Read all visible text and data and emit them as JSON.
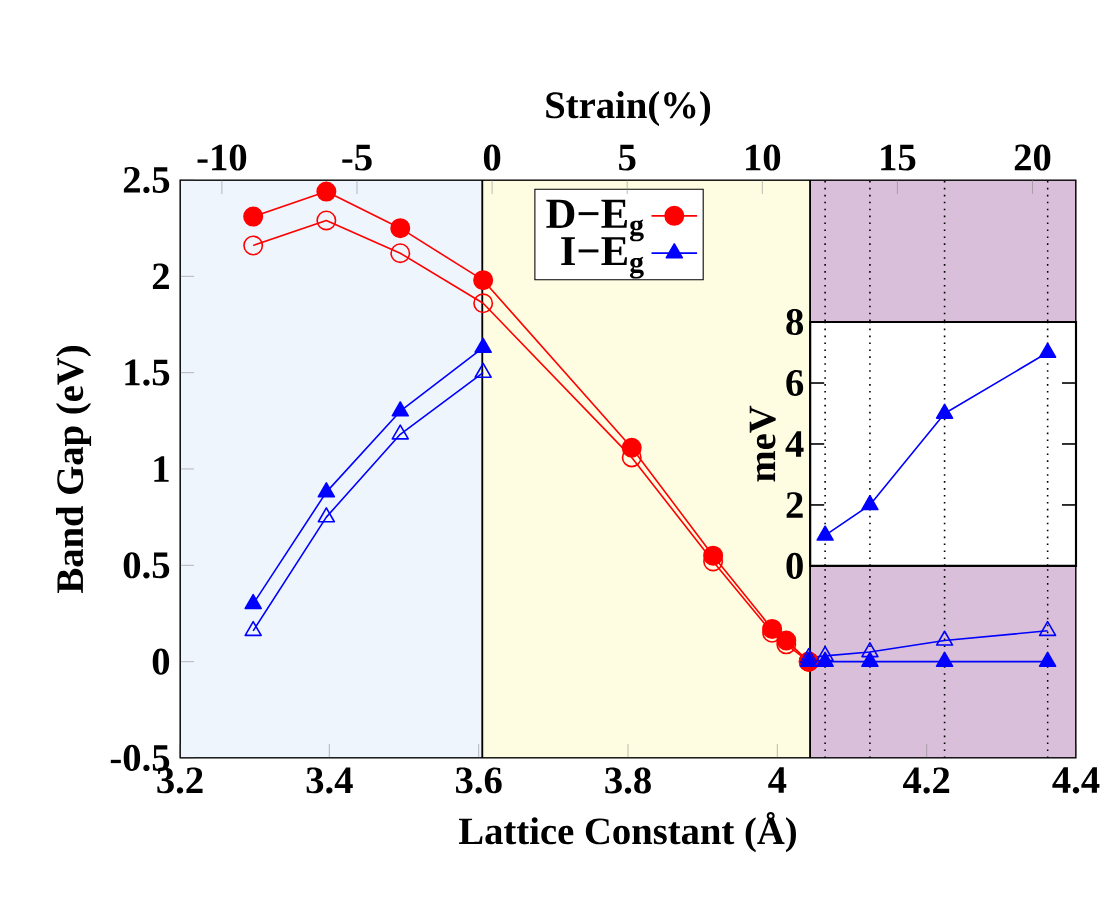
{
  "chart_data": [
    {
      "type": "line",
      "xlabel": "Lattice Constant (Å)",
      "ylabel": "Band Gap (eV)",
      "x2label": "Strain(%)",
      "xlim": [
        3.2,
        4.4
      ],
      "xticks": [
        3.2,
        3.4,
        3.6,
        3.8,
        4,
        4.2,
        4.4
      ],
      "ylim": [
        -0.5,
        2.5
      ],
      "yticks": [
        -0.5,
        0,
        0.5,
        1,
        1.5,
        2,
        2.5
      ],
      "x2lim": [
        -11.55,
        21.61
      ],
      "x2ticks": [
        -10,
        -5,
        0,
        5,
        10,
        15,
        20
      ],
      "legend": "top",
      "series": [
        {
          "name": "D−E$_{g}$",
          "color": "#ff0000",
          "marker": "circle",
          "x": [
            3.298,
            3.396,
            3.495,
            3.606,
            3.805,
            3.914,
            3.993,
            4.012,
            4.042
          ],
          "values": [
            2.31,
            2.44,
            2.25,
            1.98,
            1.11,
            0.55,
            0.17,
            0.11,
            0.0
          ]
        },
        {
          "color": "#ff0000",
          "marker": "circle",
          "x": [
            3.298,
            3.396,
            3.495,
            3.606,
            3.805,
            3.914,
            3.993,
            4.012,
            4.042
          ],
          "values": [
            2.16,
            2.29,
            2.12,
            1.86,
            1.06,
            0.52,
            0.15,
            0.09,
            0.0
          ]
        },
        {
          "name": "I−E$_{g}$",
          "color": "#0000ff",
          "marker": "triangle",
          "x": [
            3.298,
            3.396,
            3.495,
            3.606,
            3.8,
            4.042,
            4.064,
            4.124,
            4.224,
            4.362
          ],
          "values": [
            0.3,
            0.88,
            1.3,
            1.63,
            null,
            0.0,
            0.0,
            0.0,
            0.0,
            0.0
          ]
        },
        {
          "color": "#0000ff",
          "marker": "triangle",
          "x": [
            3.298,
            3.396,
            3.495,
            3.606,
            3.8,
            4.042,
            4.064,
            4.124,
            4.224,
            4.362
          ],
          "values": [
            0.16,
            0.75,
            1.18,
            1.5,
            null,
            0.02,
            0.03,
            0.05,
            0.11,
            0.16
          ]
        },
        {
          "color": "#0000ff",
          "marker": "triangle",
          "axis": "y2",
          "x": [
            4.064,
            4.124,
            4.224,
            4.362
          ],
          "values": [
            1,
            2,
            5,
            7
          ]
        }
      ],
      "y2label": "meV",
      "y2lim": [
        -6.3,
        12.66
      ],
      "y2ticks": [
        0,
        2,
        4,
        6,
        8
      ],
      "bands": [
        {
          "axis": "x",
          "from": 3.2,
          "to": 3.605,
          "color": "#eef5fd"
        },
        {
          "axis": "x",
          "from": 3.605,
          "to": 4.044,
          "color": "#fffde1"
        },
        {
          "axis": "x",
          "from": 4.044,
          "to": 4.4,
          "color": "#d9bfd9"
        },
        {
          "axis": "y2",
          "from": 0,
          "to": 8,
          "color": "#ffffff"
        }
      ],
      "ref_lines": [
        {
          "axis": "x",
          "value": 4.064,
          "color": "#000000",
          "line_style": "dotted"
        },
        {
          "axis": "x",
          "value": 4.124,
          "color": "#000000",
          "line_style": "dotted"
        },
        {
          "axis": "x",
          "value": 4.224,
          "color": "#000000",
          "line_style": "dotted"
        },
        {
          "axis": "x",
          "value": 4.362,
          "color": "#000000",
          "line_style": "dotted"
        }
      ]
    }
  ]
}
